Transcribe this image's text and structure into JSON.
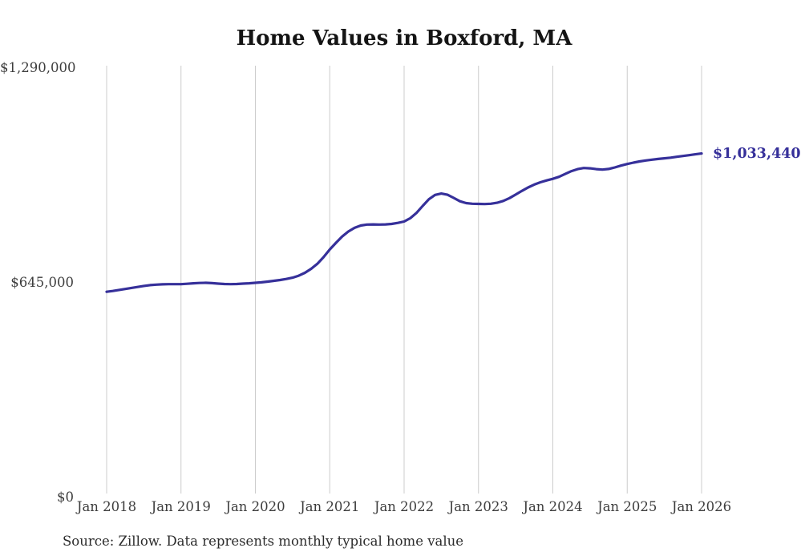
{
  "title": "Home Values in Boxford, MA",
  "source_note": "Source: Zillow. Data represents monthly typical home value",
  "end_label": "$1,033,440",
  "colors": {
    "line": "#36309a",
    "grid": "#cccccc",
    "tick_text": "#3d3d3d",
    "title_text": "#141414",
    "end_label_text": "#36309a",
    "background": "#ffffff"
  },
  "chart_data": {
    "type": "line",
    "title": "Home Values in Boxford, MA",
    "xlabel": "",
    "ylabel": "",
    "grid": "vertical-only",
    "legend": "none",
    "ylim": [
      0,
      1290000
    ],
    "y_ticks": [
      {
        "value": 0,
        "label": "$0"
      },
      {
        "value": 645000,
        "label": "$645,000"
      },
      {
        "value": 1290000,
        "label": "$1,290,000"
      }
    ],
    "x_tick_labels": [
      "Jan 2018",
      "Jan 2019",
      "Jan 2020",
      "Jan 2021",
      "Jan 2022",
      "Jan 2023",
      "Jan 2024",
      "Jan 2025",
      "Jan 2026"
    ],
    "x_freq": "monthly",
    "x_months": [
      "2018-01",
      "2018-02",
      "2018-03",
      "2018-04",
      "2018-05",
      "2018-06",
      "2018-07",
      "2018-08",
      "2018-09",
      "2018-10",
      "2018-11",
      "2018-12",
      "2019-01",
      "2019-02",
      "2019-03",
      "2019-04",
      "2019-05",
      "2019-06",
      "2019-07",
      "2019-08",
      "2019-09",
      "2019-10",
      "2019-11",
      "2019-12",
      "2020-01",
      "2020-02",
      "2020-03",
      "2020-04",
      "2020-05",
      "2020-06",
      "2020-07",
      "2020-08",
      "2020-09",
      "2020-10",
      "2020-11",
      "2020-12",
      "2021-01",
      "2021-02",
      "2021-03",
      "2021-04",
      "2021-05",
      "2021-06",
      "2021-07",
      "2021-08",
      "2021-09",
      "2021-10",
      "2021-11",
      "2021-12",
      "2022-01",
      "2022-02",
      "2022-03",
      "2022-04",
      "2022-05",
      "2022-06",
      "2022-07",
      "2022-08",
      "2022-09",
      "2022-10",
      "2022-11",
      "2022-12",
      "2023-01",
      "2023-02",
      "2023-03",
      "2023-04",
      "2023-05",
      "2023-06",
      "2023-07",
      "2023-08",
      "2023-09",
      "2023-10",
      "2023-11",
      "2023-12",
      "2024-01",
      "2024-02",
      "2024-03",
      "2024-04",
      "2024-05",
      "2024-06",
      "2024-07",
      "2024-08",
      "2024-09",
      "2024-10",
      "2024-11",
      "2024-12",
      "2025-01",
      "2025-02",
      "2025-03",
      "2025-04",
      "2025-05",
      "2025-06",
      "2025-07",
      "2025-08",
      "2025-09",
      "2025-10",
      "2025-11",
      "2025-12",
      "2026-01"
    ],
    "series": [
      {
        "name": "Typical home value",
        "values": [
          618000,
          620500,
          623500,
          626500,
          629500,
          632500,
          635500,
          638000,
          639500,
          640500,
          641000,
          641000,
          641000,
          642000,
          643500,
          644500,
          645000,
          644000,
          642500,
          641500,
          641000,
          641500,
          642500,
          643500,
          645000,
          646500,
          648500,
          651000,
          653500,
          656500,
          660500,
          666500,
          675000,
          687000,
          702000,
          722000,
          745000,
          765000,
          784000,
          799000,
          810000,
          817000,
          820000,
          820500,
          820000,
          820500,
          822000,
          825000,
          829000,
          839000,
          855000,
          876000,
          896000,
          909000,
          913000,
          909500,
          900000,
          890000,
          884500,
          882500,
          882000,
          881500,
          882500,
          885500,
          891000,
          899500,
          910000,
          921000,
          931500,
          940000,
          947000,
          952500,
          957500,
          963500,
          972000,
          980500,
          986500,
          990000,
          989000,
          986500,
          985000,
          987000,
          991500,
          997000,
          1002000,
          1006000,
          1009500,
          1012500,
          1015000,
          1017000,
          1019000,
          1021000,
          1023500,
          1026000,
          1028500,
          1031000,
          1033440
        ]
      }
    ],
    "last_value": 1033440,
    "last_value_label": "$1,033,440"
  }
}
